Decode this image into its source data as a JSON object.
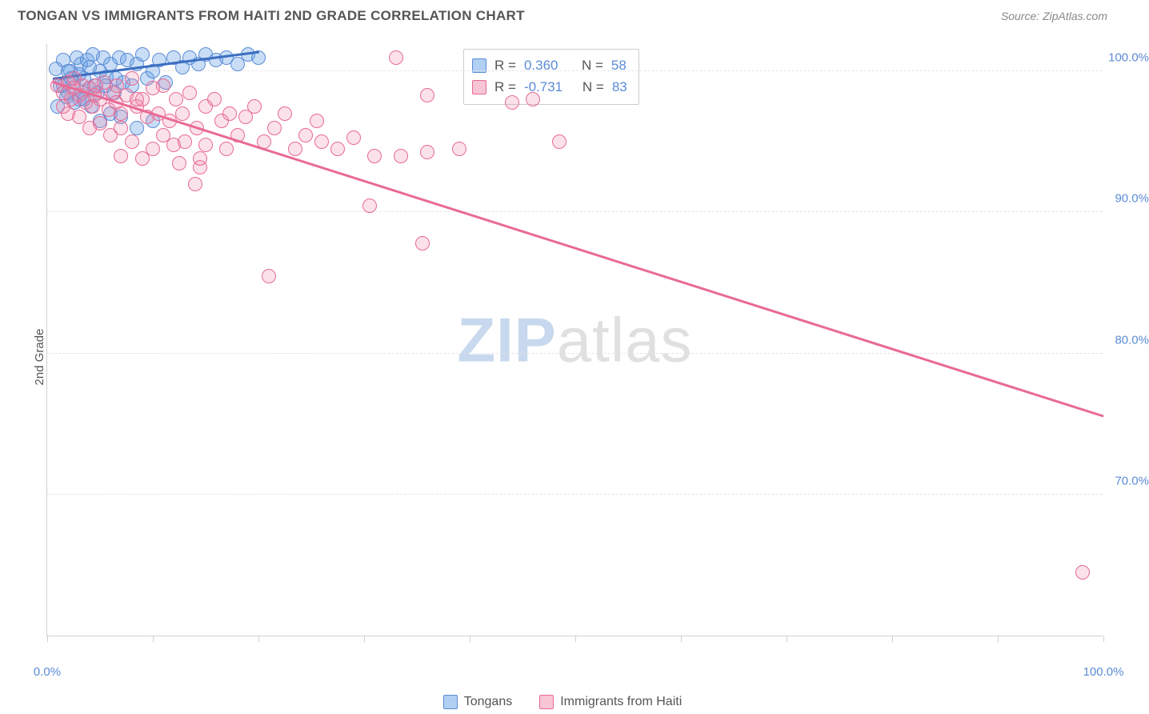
{
  "header": {
    "title": "TONGAN VS IMMIGRANTS FROM HAITI 2ND GRADE CORRELATION CHART",
    "source_prefix": "Source: ",
    "source_name": "ZipAtlas.com"
  },
  "chart": {
    "type": "scatter",
    "background_color": "#ffffff",
    "grid_color": "#e4e4e4",
    "axis_color": "#d0d0d0",
    "ylabel": "2nd Grade",
    "xlim": [
      0,
      100
    ],
    "ylim": [
      60,
      102
    ],
    "x_ticks": [
      0,
      10,
      20,
      30,
      40,
      50,
      60,
      70,
      80,
      90,
      100
    ],
    "x_tick_labels": {
      "0": "0.0%",
      "100": "100.0%"
    },
    "y_ticks": [
      70,
      80,
      90,
      100
    ],
    "y_tick_labels": {
      "70": "70.0%",
      "80": "80.0%",
      "90": "90.0%",
      "100": "100.0%"
    },
    "marker_size": 18,
    "marker_opacity_blue": 0.35,
    "marker_opacity_pink": 0.25,
    "line_width": 2.5,
    "series": [
      {
        "key": "tongans",
        "label": "Tongans",
        "color": "#5b8bd6",
        "fill": "rgba(100,160,230,0.35)",
        "R": "0.360",
        "N": "58",
        "trend": {
          "x1": 0.5,
          "y1": 99.4,
          "x2": 20,
          "y2": 101.3
        },
        "points": [
          [
            0.8,
            100.2
          ],
          [
            1.2,
            99.0
          ],
          [
            1.5,
            100.8
          ],
          [
            2.0,
            98.5
          ],
          [
            2.2,
            100.0
          ],
          [
            2.5,
            99.2
          ],
          [
            2.8,
            101.0
          ],
          [
            3.0,
            98.0
          ],
          [
            3.2,
            100.5
          ],
          [
            3.5,
            99.5
          ],
          [
            3.8,
            100.8
          ],
          [
            4.0,
            98.8
          ],
          [
            4.3,
            101.2
          ],
          [
            4.5,
            99.0
          ],
          [
            5.0,
            100.0
          ],
          [
            5.3,
            101.0
          ],
          [
            5.6,
            99.6
          ],
          [
            6.0,
            100.5
          ],
          [
            6.4,
            98.5
          ],
          [
            6.8,
            101.0
          ],
          [
            7.2,
            99.2
          ],
          [
            7.6,
            100.8
          ],
          [
            8.0,
            99.0
          ],
          [
            8.5,
            100.5
          ],
          [
            9.0,
            101.2
          ],
          [
            9.5,
            99.5
          ],
          [
            10.0,
            100.0
          ],
          [
            10.6,
            100.8
          ],
          [
            11.2,
            99.2
          ],
          [
            12.0,
            101.0
          ],
          [
            12.8,
            100.3
          ],
          [
            13.5,
            101.0
          ],
          [
            14.3,
            100.5
          ],
          [
            15.0,
            101.2
          ],
          [
            16.0,
            100.8
          ],
          [
            17.0,
            101.0
          ],
          [
            18.0,
            100.5
          ],
          [
            19.0,
            101.2
          ],
          [
            20.0,
            101.0
          ],
          [
            1.0,
            97.5
          ],
          [
            1.8,
            98.2
          ],
          [
            2.6,
            97.8
          ],
          [
            3.3,
            98.5
          ],
          [
            4.2,
            97.5
          ],
          [
            5.0,
            96.5
          ],
          [
            6.0,
            97.0
          ],
          [
            7.0,
            96.8
          ],
          [
            2.0,
            100.0
          ],
          [
            3.0,
            99.8
          ],
          [
            4.0,
            100.3
          ],
          [
            1.5,
            99.0
          ],
          [
            2.3,
            99.5
          ],
          [
            3.5,
            98.0
          ],
          [
            4.8,
            98.5
          ],
          [
            5.5,
            99.0
          ],
          [
            6.5,
            99.5
          ],
          [
            8.5,
            96.0
          ],
          [
            10.0,
            96.5
          ]
        ]
      },
      {
        "key": "haiti",
        "label": "Immigrants from Haiti",
        "color": "#e86a95",
        "fill": "rgba(240,140,170,0.25)",
        "R": "-0.731",
        "N": "83",
        "trend": {
          "x1": 0.5,
          "y1": 99.2,
          "x2": 100,
          "y2": 75.5
        },
        "points": [
          [
            1.0,
            99.0
          ],
          [
            1.5,
            98.5
          ],
          [
            2.0,
            99.2
          ],
          [
            2.3,
            98.0
          ],
          [
            2.6,
            99.5
          ],
          [
            3.0,
            98.3
          ],
          [
            3.3,
            99.0
          ],
          [
            3.6,
            97.8
          ],
          [
            4.0,
            98.8
          ],
          [
            4.3,
            97.5
          ],
          [
            4.6,
            99.0
          ],
          [
            5.0,
            98.0
          ],
          [
            5.4,
            99.2
          ],
          [
            5.8,
            97.3
          ],
          [
            6.2,
            98.5
          ],
          [
            6.6,
            99.0
          ],
          [
            7.0,
            97.0
          ],
          [
            7.5,
            98.3
          ],
          [
            8.0,
            99.5
          ],
          [
            8.5,
            97.5
          ],
          [
            9.0,
            98.0
          ],
          [
            9.5,
            96.8
          ],
          [
            10.0,
            98.8
          ],
          [
            10.5,
            97.0
          ],
          [
            11.0,
            99.0
          ],
          [
            11.6,
            96.5
          ],
          [
            12.2,
            98.0
          ],
          [
            12.8,
            97.0
          ],
          [
            13.5,
            98.5
          ],
          [
            14.2,
            96.0
          ],
          [
            15.0,
            97.5
          ],
          [
            15.8,
            98.0
          ],
          [
            16.5,
            96.5
          ],
          [
            17.3,
            97.0
          ],
          [
            18.0,
            95.5
          ],
          [
            18.8,
            96.8
          ],
          [
            19.6,
            97.5
          ],
          [
            20.5,
            95.0
          ],
          [
            21.5,
            96.0
          ],
          [
            22.5,
            97.0
          ],
          [
            23.5,
            94.5
          ],
          [
            24.5,
            95.5
          ],
          [
            25.5,
            96.5
          ],
          [
            2.0,
            97.0
          ],
          [
            4.0,
            96.0
          ],
          [
            6.0,
            95.5
          ],
          [
            8.0,
            95.0
          ],
          [
            10.0,
            94.5
          ],
          [
            12.0,
            94.8
          ],
          [
            3.0,
            96.8
          ],
          [
            5.0,
            96.3
          ],
          [
            7.0,
            96.0
          ],
          [
            2.5,
            98.8
          ],
          [
            4.5,
            98.3
          ],
          [
            6.5,
            97.8
          ],
          [
            8.5,
            98.0
          ],
          [
            11.0,
            95.5
          ],
          [
            13.0,
            95.0
          ],
          [
            15.0,
            94.8
          ],
          [
            17.0,
            94.5
          ],
          [
            7.0,
            94.0
          ],
          [
            9.0,
            93.8
          ],
          [
            12.5,
            93.5
          ],
          [
            14.5,
            93.2
          ],
          [
            14.0,
            92.0
          ],
          [
            26.0,
            95.0
          ],
          [
            27.5,
            94.5
          ],
          [
            29.0,
            95.3
          ],
          [
            31.0,
            94.0
          ],
          [
            30.5,
            90.5
          ],
          [
            33.0,
            101.0
          ],
          [
            36.0,
            98.3
          ],
          [
            33.5,
            94.0
          ],
          [
            36.0,
            94.3
          ],
          [
            39.0,
            94.5
          ],
          [
            35.5,
            87.8
          ],
          [
            44.0,
            97.8
          ],
          [
            46.0,
            98.0
          ],
          [
            48.5,
            95.0
          ],
          [
            21.0,
            85.5
          ],
          [
            14.5,
            93.8
          ],
          [
            98.0,
            64.5
          ],
          [
            1.5,
            97.5
          ]
        ]
      }
    ]
  },
  "legend": {
    "s1": "Tongans",
    "s2": "Immigrants from Haiti"
  },
  "stats": {
    "R_label": "R =",
    "N_label": "N ="
  },
  "watermark": {
    "zip": "ZIP",
    "atlas": "atlas"
  }
}
